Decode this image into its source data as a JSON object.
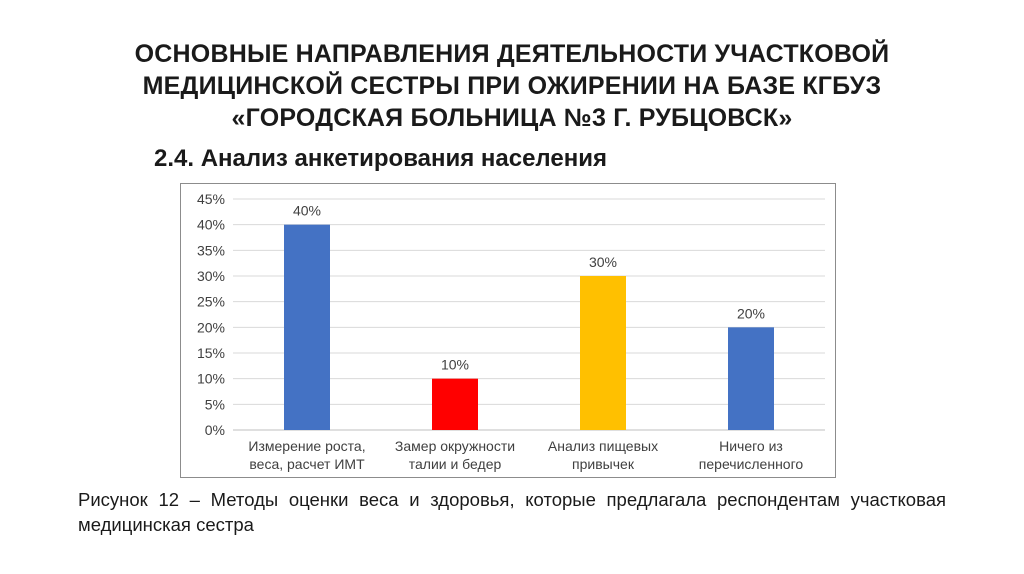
{
  "slide": {
    "title_lines": [
      "ОСНОВНЫЕ НАПРАВЛЕНИЯ ДЕЯТЕЛЬНОСТИ УЧАСТКОВОЙ",
      "МЕДИЦИНСКОЙ СЕСТРЫ ПРИ ОЖИРЕНИИ НА БАЗЕ КГБУЗ",
      "«ГОРОДСКАЯ БОЛЬНИЦА №3 Г. РУБЦОВСК»"
    ],
    "subtitle": "2.4. Анализ анкетирования населения",
    "caption": "Рисунок 12 – Методы оценки веса и здоровья, которые предлагала респондентам участковая медицинская сестра"
  },
  "chart_data": {
    "type": "bar",
    "categories": [
      [
        "Измерение роста,",
        "веса, расчет ИМТ"
      ],
      [
        "Замер окружности",
        "талии и бедер"
      ],
      [
        "Анализ пищевых",
        "привычек"
      ],
      [
        "Ничего из",
        "перечисленного"
      ]
    ],
    "values": [
      40,
      10,
      30,
      20
    ],
    "data_labels": [
      "40%",
      "10%",
      "30%",
      "20%"
    ],
    "colors": [
      "#4472c4",
      "#ff0000",
      "#ffc000",
      "#4472c4"
    ],
    "ylim": [
      0,
      45
    ],
    "y_ticks": [
      0,
      5,
      10,
      15,
      20,
      25,
      30,
      35,
      40,
      45
    ],
    "y_tick_suffix": "%",
    "grid": true,
    "grid_color": "#d9d9d9",
    "legend": "none"
  }
}
